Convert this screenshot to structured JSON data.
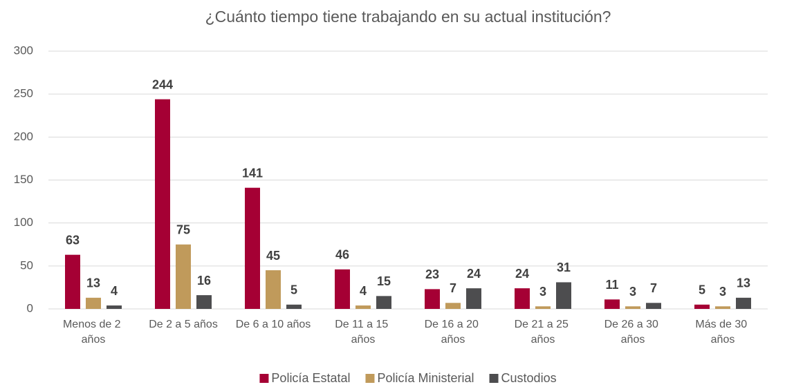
{
  "chart_data": {
    "type": "bar",
    "title": "¿Cuánto tiempo tiene trabajando en su actual institución?",
    "categories": [
      "Menos de 2 años",
      "De 2 a 5 años",
      "De 6 a 10 años",
      "De 11 a 15 años",
      "De 16 a 20 años",
      "De 21 a 25 años",
      "De 26 a 30 años",
      "Más de 30 años"
    ],
    "series": [
      {
        "name": "Policía Estatal",
        "color": "#a50034",
        "values": [
          63,
          244,
          141,
          46,
          23,
          24,
          11,
          5
        ]
      },
      {
        "name": "Policía Ministerial",
        "color": "#c09a5b",
        "values": [
          13,
          75,
          45,
          4,
          7,
          3,
          3,
          3
        ]
      },
      {
        "name": "Custodios",
        "color": "#4d4d4f",
        "values": [
          4,
          16,
          5,
          15,
          24,
          31,
          7,
          13
        ]
      }
    ],
    "ylim": [
      0,
      300
    ],
    "yticks": [
      0,
      50,
      100,
      150,
      200,
      250,
      300
    ],
    "grid": true,
    "legend": "bottom"
  }
}
